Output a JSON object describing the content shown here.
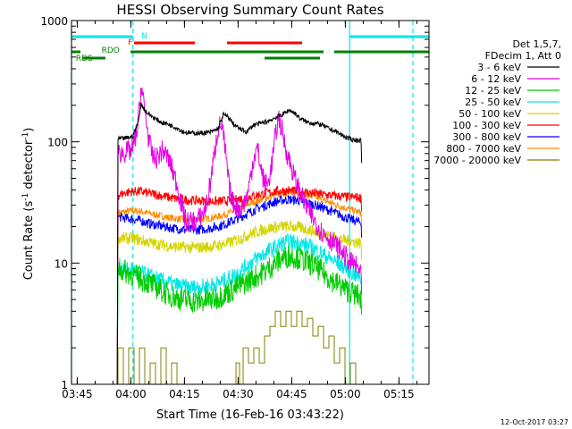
{
  "chart_data": {
    "type": "line",
    "title": "HESSI Observing Summary Count Rates",
    "xlabel": "Start Time (16-Feb-16 03:43:22)",
    "ylabel": "Count Rate (s",
    "ylabel_sup": "-1",
    "ylabel_mid": " detector",
    "ylabel_sup2": "-1",
    "ylabel_end": ")",
    "x_units": "minutes since 03:43:22",
    "xlim": [
      0,
      100
    ],
    "ylim": [
      1,
      1000
    ],
    "yscale": "log",
    "x_ticks": [
      {
        "label": "03:45",
        "x": 1.6
      },
      {
        "label": "04:00",
        "x": 16.6
      },
      {
        "label": "04:15",
        "x": 31.6
      },
      {
        "label": "04:30",
        "x": 46.6
      },
      {
        "label": "04:45",
        "x": 61.6
      },
      {
        "label": "05:00",
        "x": 76.6
      },
      {
        "label": "05:15",
        "x": 91.6
      }
    ],
    "y_ticks": [
      {
        "label": "1",
        "v": 1
      },
      {
        "label": "10",
        "v": 10
      },
      {
        "label": "100",
        "v": 100
      },
      {
        "label": "1000",
        "v": 1000
      }
    ],
    "legend": {
      "header": [
        "Det 1,5,7,",
        "FDecim 1, Att 0"
      ],
      "entries": [
        {
          "label": "3 - 6 keV",
          "color": "#000000"
        },
        {
          "label": "6 - 12 keV",
          "color": "#e600e6"
        },
        {
          "label": "12 - 25 keV",
          "color": "#00cc00"
        },
        {
          "label": "25 - 50 keV",
          "color": "#00e6e6"
        },
        {
          "label": "50 - 100 keV",
          "color": "#d4d400"
        },
        {
          "label": "100 - 300 keV",
          "color": "#ff0000"
        },
        {
          "label": "300 - 800 keV",
          "color": "#0000ff"
        },
        {
          "label": "800 - 7000 keV",
          "color": "#ff8c00"
        },
        {
          "label": "7000 - 20000 keV",
          "color": "#808000"
        }
      ]
    },
    "flags": [
      {
        "name": "N",
        "color": "#00e6e6",
        "label_x": 19.5,
        "row": "N",
        "segments": [
          [
            0,
            17.2
          ],
          [
            77.8,
            100
          ]
        ]
      },
      {
        "name": "F",
        "color": "#ff0000",
        "label_x": 15.8,
        "row": "F",
        "segments": [
          [
            17.5,
            34.5
          ],
          [
            43.5,
            64.5
          ]
        ]
      },
      {
        "name": "RDO",
        "color": "#008000",
        "label_x": 8.4,
        "row": "RDO",
        "segments": [
          [
            0,
            2.5
          ],
          [
            16.5,
            70.5
          ],
          [
            73.5,
            100
          ]
        ]
      },
      {
        "name": "RDS",
        "color": "#008000",
        "label_x": 1.2,
        "row": "RDS",
        "segments": [
          [
            3,
            9.5
          ],
          [
            54,
            69.5
          ]
        ]
      }
    ],
    "markers": [
      {
        "x": 0,
        "style": "solid",
        "color": "#00e6e6"
      },
      {
        "x": 17.2,
        "style": "dashed",
        "color": "#00e6e6"
      },
      {
        "x": 77.8,
        "style": "solid",
        "color": "#00e6e6"
      },
      {
        "x": 95.5,
        "style": "dashed",
        "color": "#00e6e6"
      }
    ],
    "series": [
      {
        "name": "3 - 6 keV",
        "color": "#000000",
        "noise": 0.02,
        "x": [
          12.8,
          13.0,
          15,
          17,
          18.5,
          19.5,
          21,
          23,
          25,
          27,
          29,
          30,
          31,
          32.5,
          34,
          36,
          39,
          41,
          42.5,
          44,
          45.5,
          47,
          49,
          51,
          53,
          55,
          57,
          59,
          61,
          62.5,
          64,
          66,
          68,
          70,
          72,
          74,
          75,
          76,
          77,
          78,
          79,
          80,
          81,
          81.2
        ],
        "y": [
          1,
          105,
          107,
          110,
          140,
          205,
          175,
          158,
          145,
          140,
          132,
          128,
          122,
          119,
          118,
          118,
          120,
          128,
          168,
          158,
          138,
          128,
          121,
          138,
          142,
          148,
          158,
          168,
          183,
          172,
          155,
          145,
          142,
          138,
          128,
          122,
          116,
          112,
          108,
          105,
          104,
          103,
          103,
          60
        ]
      },
      {
        "name": "6 - 12 keV",
        "color": "#e600e6",
        "noise": 0.09,
        "x": [
          12.8,
          13.0,
          15,
          17,
          18.5,
          19.5,
          20.5,
          21.5,
          22.5,
          23.5,
          24.5,
          25.5,
          26.5,
          27.5,
          28.5,
          29.5,
          30,
          31,
          32,
          33,
          34,
          35,
          36,
          37,
          38,
          39,
          40,
          41,
          42,
          43,
          44,
          45,
          46,
          47,
          48,
          49,
          50,
          51,
          52,
          53,
          54,
          55,
          56,
          57,
          58,
          59,
          60,
          61,
          62,
          63,
          64,
          65,
          66,
          67,
          68,
          69,
          70,
          71,
          72,
          73,
          74,
          75,
          76,
          77,
          78,
          79,
          80,
          81,
          81.2
        ],
        "y": [
          1,
          80,
          82,
          85,
          130,
          290,
          180,
          110,
          78,
          72,
          78,
          85,
          78,
          68,
          55,
          45,
          38,
          28,
          22,
          22,
          22,
          22,
          24,
          26,
          32,
          50,
          80,
          130,
          140,
          85,
          45,
          32,
          30,
          28,
          30,
          34,
          50,
          75,
          88,
          60,
          45,
          45,
          65,
          110,
          160,
          120,
          85,
          70,
          55,
          45,
          38,
          32,
          28,
          25,
          22,
          20,
          18,
          17,
          16,
          15,
          14,
          13,
          12,
          11,
          10,
          10,
          9,
          9,
          5
        ]
      },
      {
        "name": "12 - 25 keV",
        "color": "#00cc00",
        "noise": 0.1,
        "x": [
          12.8,
          13.0,
          15,
          17,
          19,
          21,
          23,
          25,
          27,
          29,
          31,
          33,
          35,
          37,
          39,
          41,
          43,
          45,
          47,
          49,
          51,
          53,
          55,
          57,
          59,
          61,
          63,
          65,
          67,
          69,
          71,
          73,
          75,
          77,
          79,
          80.5,
          81,
          81.2
        ],
        "y": [
          1,
          9,
          8.5,
          8,
          7.5,
          7,
          6.5,
          6,
          5.5,
          5.2,
          5,
          4.9,
          4.8,
          4.9,
          5,
          5.2,
          5.6,
          6,
          6.5,
          7,
          7.6,
          8.2,
          9,
          10,
          11,
          11.5,
          11.2,
          10.5,
          9.8,
          9,
          8,
          7.2,
          6.6,
          6,
          5.6,
          5.3,
          5,
          3.5
        ]
      },
      {
        "name": "25 - 50 keV",
        "color": "#00e6e6",
        "noise": 0.07,
        "x": [
          12.8,
          13.0,
          15,
          17,
          19,
          21,
          23,
          25,
          27,
          29,
          31,
          33,
          35,
          37,
          39,
          41,
          43,
          45,
          47,
          49,
          51,
          53,
          55,
          57,
          59,
          61,
          63,
          65,
          67,
          69,
          71,
          73,
          75,
          77,
          79,
          81,
          81.2
        ],
        "y": [
          1,
          9.5,
          9,
          8.8,
          8.4,
          8,
          7.6,
          7.2,
          6.9,
          6.6,
          6.4,
          6.3,
          6.3,
          6.4,
          6.6,
          6.8,
          7.2,
          7.8,
          8.5,
          9.5,
          10.5,
          11.5,
          12.5,
          13.5,
          14.5,
          15,
          14.8,
          14.2,
          13.5,
          12.5,
          11.5,
          10.5,
          9.8,
          9,
          8.2,
          7.5,
          5
        ]
      },
      {
        "name": "50 - 100 keV",
        "color": "#d4d400",
        "noise": 0.05,
        "x": [
          12.8,
          13.0,
          15,
          17,
          19,
          21,
          23,
          25,
          27,
          29,
          31,
          33,
          35,
          37,
          39,
          41,
          43,
          45,
          47,
          49,
          51,
          53,
          55,
          57,
          59,
          61,
          63,
          65,
          67,
          69,
          71,
          73,
          75,
          77,
          79,
          81,
          81.2
        ],
        "y": [
          1,
          16,
          16,
          16,
          15.5,
          15,
          14.5,
          14.2,
          13.9,
          13.6,
          13.5,
          13.4,
          13.4,
          13.5,
          13.7,
          14,
          14.4,
          15,
          15.8,
          16.8,
          17.8,
          18.6,
          19.2,
          19.8,
          20,
          20,
          19.8,
          19.3,
          18.6,
          17.8,
          17,
          16.3,
          15.8,
          15.3,
          15,
          14.6,
          10
        ]
      },
      {
        "name": "100 - 300 keV",
        "color": "#ff0000",
        "noise": 0.04,
        "x": [
          12.8,
          13.0,
          15,
          17,
          19,
          21,
          23,
          25,
          27,
          29,
          31,
          33,
          35,
          37,
          39,
          41,
          43,
          45,
          47,
          49,
          51,
          53,
          55,
          57,
          59,
          61,
          63,
          65,
          67,
          69,
          71,
          73,
          75,
          77,
          79,
          81,
          81.2
        ],
        "y": [
          1,
          36,
          38,
          39,
          39,
          38,
          37,
          36,
          35,
          34,
          33.5,
          33,
          32.8,
          32.5,
          32.3,
          32.3,
          32.5,
          33,
          33.8,
          34.8,
          36,
          37,
          38,
          39,
          39.5,
          39.5,
          39,
          38.5,
          38,
          37.2,
          36.5,
          36,
          35.5,
          35,
          35,
          34.5,
          25
        ]
      },
      {
        "name": "300 - 800 keV",
        "color": "#0000ff",
        "noise": 0.04,
        "x": [
          12.8,
          13.0,
          15,
          17,
          19,
          21,
          23,
          25,
          27,
          29,
          31,
          33,
          35,
          37,
          39,
          41,
          43,
          45,
          47,
          49,
          51,
          53,
          55,
          57,
          59,
          61,
          63,
          65,
          67,
          69,
          71,
          73,
          75,
          77,
          79,
          81,
          81.2
        ],
        "y": [
          1,
          24,
          23.5,
          23,
          22.5,
          21.5,
          20.8,
          20.2,
          19.7,
          19.3,
          19,
          18.8,
          18.8,
          19,
          19.4,
          20,
          21,
          22.2,
          23.8,
          25.5,
          27.3,
          29,
          30.5,
          32,
          33,
          33.5,
          33,
          32,
          30.8,
          29.5,
          28,
          26.5,
          25,
          23.5,
          22.5,
          21.5,
          15
        ]
      },
      {
        "name": "800 - 7000 keV",
        "color": "#ff8c00",
        "noise": 0.03,
        "x": [
          12.8,
          13.0,
          15,
          17,
          19,
          21,
          23,
          25,
          27,
          29,
          31,
          33,
          35,
          37,
          39,
          41,
          43,
          45,
          47,
          49,
          51,
          53,
          55,
          57,
          59,
          61,
          63,
          65,
          67,
          69,
          71,
          73,
          75,
          77,
          79,
          81,
          81.2
        ],
        "y": [
          1,
          26,
          26.5,
          27,
          26.8,
          26,
          25.2,
          24.5,
          23.8,
          23.3,
          23,
          22.8,
          22.8,
          23,
          23.5,
          24.2,
          25.2,
          26.5,
          28.2,
          30,
          31.8,
          33.5,
          35,
          36.5,
          37.5,
          38,
          37.8,
          37,
          35.8,
          34.2,
          32.5,
          31,
          29.5,
          28.2,
          27,
          26,
          18
        ]
      },
      {
        "name": "7000 - 20000 keV",
        "color": "#808000",
        "noise": 0,
        "x": [
          12.8,
          13.0,
          14.5,
          16,
          17.5,
          19,
          20.5,
          22,
          23.5,
          25,
          26.5,
          28,
          29.5,
          31,
          33,
          35,
          37,
          39,
          41,
          43,
          45,
          46,
          47,
          48,
          49.5,
          51,
          52.5,
          54,
          55.5,
          57,
          58.5,
          60,
          61.5,
          63,
          64.5,
          66,
          67.5,
          69,
          70.5,
          72,
          73.5,
          75,
          76.5,
          78,
          79.5,
          81,
          81.2
        ],
        "y": [
          1,
          2,
          1,
          2,
          1,
          2,
          1,
          1.5,
          1,
          2,
          1,
          1.5,
          1,
          1,
          1,
          1,
          1,
          1,
          1,
          1,
          1,
          1.5,
          1,
          2,
          1.5,
          2,
          1.5,
          2.5,
          3,
          4,
          3,
          4,
          3,
          4,
          3,
          3.5,
          2.5,
          3,
          2,
          2.5,
          1.5,
          2,
          1,
          1.5,
          1,
          1,
          1
        ]
      }
    ]
  },
  "footer": {
    "timestamp": "12-Oct-2017 03:27"
  }
}
